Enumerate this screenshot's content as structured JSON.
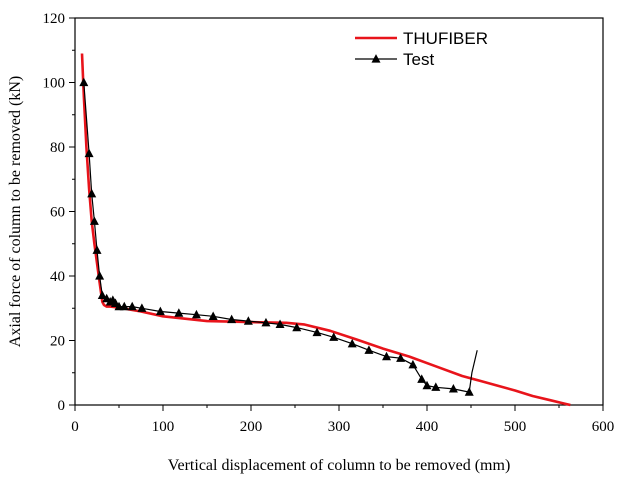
{
  "chart_data": {
    "type": "line",
    "title": "",
    "xlabel": "Vertical displacement of column to be removed (mm)",
    "ylabel": "Axial force of column to be removed (kN)",
    "xlim": [
      0,
      600
    ],
    "ylim": [
      0,
      120
    ],
    "xticks": [
      0,
      100,
      200,
      300,
      400,
      500,
      600
    ],
    "yticks": [
      0,
      20,
      40,
      60,
      80,
      100,
      120
    ],
    "legend_position": "top-right",
    "grid": false,
    "series": [
      {
        "name": "THUFIBER",
        "color": "#e8141b",
        "marker": "none",
        "x": [
          8,
          10,
          13,
          16,
          19,
          22,
          25,
          28,
          31,
          33,
          36,
          40,
          50,
          75,
          100,
          150,
          200,
          240,
          260,
          290,
          320,
          350,
          380,
          410,
          440,
          460,
          480,
          500,
          520,
          540,
          555,
          563
        ],
        "y": [
          109,
          96,
          80,
          67,
          57,
          50,
          44,
          38,
          32,
          31,
          30.5,
          30.5,
          30.2,
          29,
          27.5,
          26,
          25.7,
          25.5,
          25,
          23,
          20.3,
          17.5,
          15,
          12,
          9,
          7.5,
          6,
          4.5,
          2.8,
          1.5,
          0.5,
          0
        ]
      },
      {
        "name": "Test",
        "color": "#000000",
        "marker": "triangle",
        "x": [
          9,
          10,
          16,
          19,
          22,
          25,
          28,
          31,
          36,
          40,
          43,
          46,
          50,
          56,
          65,
          76,
          97,
          118,
          138,
          157,
          178,
          197,
          217,
          233,
          252,
          275,
          294,
          315,
          334,
          354,
          370,
          384,
          394,
          400,
          410,
          430,
          448,
          451,
          457
        ],
        "y": [
          100,
          100,
          78,
          65.5,
          57,
          48,
          40,
          34,
          33,
          32,
          32.5,
          31.5,
          30.5,
          30.5,
          30.5,
          30,
          29,
          28.5,
          28,
          27.5,
          26.5,
          26,
          25.5,
          25,
          24,
          22.5,
          21,
          19,
          17,
          15,
          14.5,
          12.5,
          8,
          6,
          5.5,
          5,
          4,
          10,
          17
        ]
      }
    ]
  }
}
